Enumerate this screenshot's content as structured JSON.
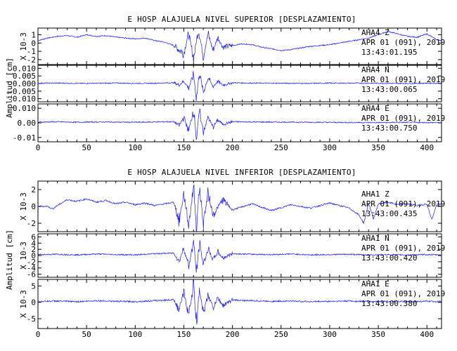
{
  "chart_data": [
    {
      "type": "line",
      "title": "E HOSP ALAJUELA NIVEL SUPERIOR [DESPLAZAMIENTO]",
      "ylabel": "Amplitud [cm]",
      "xlim": [
        0,
        415
      ],
      "x_ticks": [
        "0",
        "50",
        "100",
        "150",
        "200",
        "250",
        "300",
        "350",
        "400"
      ],
      "panels": [
        {
          "channel": "AHA4   Z",
          "date": "APR 01 (091), 2019",
          "time": "13:43:01.195",
          "scale_label": "X 10-3",
          "ylim": [
            -2.6,
            1.8
          ],
          "y_ticks": [
            "1",
            "0",
            "-1",
            "-2"
          ],
          "series": {
            "name": "AHA4 Z",
            "x": [
              0,
              10,
              20,
              30,
              40,
              50,
              60,
              70,
              80,
              90,
              100,
              110,
              120,
              130,
              140,
              145,
              150,
              155,
              160,
              165,
              170,
              175,
              180,
              185,
              190,
              200,
              210,
              220,
              230,
              240,
              250,
              260,
              270,
              280,
              290,
              300,
              310,
              320,
              330,
              340,
              350,
              360,
              370,
              380,
              390,
              400,
              410,
              415
            ],
            "values": [
              0.3,
              0.6,
              0.8,
              0.9,
              0.7,
              1.0,
              0.8,
              0.9,
              0.7,
              0.6,
              0.5,
              0.6,
              0.3,
              0.1,
              -0.3,
              -0.8,
              -1.2,
              1.2,
              -1.9,
              1.7,
              -1.6,
              1.1,
              -0.9,
              0.7,
              -0.5,
              -0.3,
              -0.1,
              -0.2,
              -0.5,
              -0.7,
              -0.9,
              -0.8,
              -0.6,
              -0.4,
              -0.3,
              -0.2,
              0.0,
              0.2,
              0.4,
              0.6,
              1.0,
              1.4,
              1.1,
              0.8,
              0.7,
              1.1,
              0.4,
              0.3
            ]
          }
        },
        {
          "channel": "AHA4   N",
          "date": "APR 01 (091), 2019",
          "time": "13:43:00.065",
          "scale_label": "",
          "ylim": [
            -0.012,
            0.012
          ],
          "y_ticks": [
            "0.010",
            "0.005",
            "0.000",
            "-0.005",
            "-0.010"
          ],
          "series": {
            "name": "AHA4 N",
            "x": [
              0,
              20,
              40,
              60,
              80,
              100,
              120,
              140,
              145,
              150,
              155,
              160,
              163,
              166,
              170,
              175,
              180,
              185,
              190,
              200,
              220,
              250,
              280,
              300,
              350,
              380,
              400,
              415
            ],
            "values": [
              0.0002,
              0.0003,
              0.0001,
              0.0002,
              0.0003,
              0.0001,
              0.0002,
              0.0005,
              -0.001,
              0.0015,
              -0.003,
              0.006,
              -0.01,
              0.008,
              -0.006,
              0.004,
              -0.002,
              0.0015,
              -0.001,
              0.0005,
              0.0003,
              0.0002,
              0.0001,
              0.0003,
              0.0002,
              0.0001,
              0.0002,
              0.0002
            ]
          }
        },
        {
          "channel": "AHA4   E",
          "date": "APR 01 (091), 2019",
          "time": "13:43:00.750",
          "scale_label": "",
          "ylim": [
            -0.013,
            0.013
          ],
          "y_ticks": [
            "0.010",
            "0.00",
            "-0.01"
          ],
          "series": {
            "name": "AHA4 E",
            "x": [
              0,
              20,
              40,
              60,
              80,
              100,
              120,
              140,
              145,
              150,
              155,
              160,
              163,
              166,
              170,
              175,
              180,
              185,
              190,
              200,
              220,
              250,
              280,
              300,
              350,
              380,
              400,
              415
            ],
            "values": [
              0.0005,
              0.0007,
              0.0004,
              0.0006,
              0.0005,
              0.0004,
              0.0006,
              0.0008,
              -0.002,
              0.004,
              -0.006,
              0.01,
              -0.011,
              0.008,
              -0.006,
              0.004,
              -0.003,
              0.002,
              -0.001,
              0.0008,
              0.0006,
              0.0005,
              0.0004,
              0.0003,
              0.0002,
              0.0003,
              0.0002,
              0.0001
            ]
          }
        }
      ]
    },
    {
      "type": "line",
      "title": "E HOSP ALAJUELA NIVEL INFERIOR [DESPLAZAMIENTO]",
      "ylabel": "Amplitud [cm]",
      "xlim": [
        0,
        415
      ],
      "x_ticks": [
        "0",
        "50",
        "100",
        "150",
        "200",
        "250",
        "300",
        "350",
        "400"
      ],
      "panels": [
        {
          "channel": "AHA1   Z",
          "date": "APR 01 (091), 2019",
          "time": "13:43:00.435",
          "scale_label": "X 10-3",
          "ylim": [
            -3.0,
            3.0
          ],
          "y_ticks": [
            "2",
            "0",
            "-2"
          ],
          "series": {
            "name": "AHA1 Z",
            "x": [
              0,
              10,
              15,
              20,
              30,
              40,
              50,
              60,
              70,
              80,
              90,
              100,
              110,
              120,
              130,
              140,
              145,
              150,
              155,
              160,
              163,
              166,
              170,
              175,
              180,
              190,
              200,
              220,
              240,
              260,
              280,
              300,
              320,
              330,
              335,
              340,
              345,
              350,
              360,
              370,
              380,
              390,
              400,
              405,
              410,
              415
            ],
            "values": [
              0,
              0,
              -0.3,
              0.1,
              0.8,
              0.6,
              0.9,
              0.5,
              0.7,
              0.3,
              0.5,
              0.2,
              0.4,
              0.1,
              0.3,
              0.5,
              -1.8,
              1.5,
              -2.3,
              2.5,
              -2.6,
              2.4,
              -1.9,
              1.6,
              -1.0,
              0.8,
              -0.4,
              0.3,
              -0.5,
              0.2,
              -0.2,
              0.4,
              -0.2,
              -1.0,
              -2.0,
              0.4,
              -1.5,
              0.3,
              0.5,
              0.2,
              0.3,
              0.1,
              0.3,
              -1.6,
              0.2,
              0.3
            ]
          }
        },
        {
          "channel": "AHA1   N",
          "date": "APR 01 (091), 2019",
          "time": "13:43:00.420",
          "scale_label": "X 10-3",
          "ylim": [
            -7.0,
            7.0
          ],
          "y_ticks": [
            "6",
            "4",
            "2",
            "0",
            "-2",
            "-4",
            "-6"
          ],
          "series": {
            "name": "AHA1 N",
            "x": [
              0,
              20,
              40,
              60,
              80,
              100,
              120,
              140,
              145,
              150,
              155,
              160,
              163,
              166,
              170,
              175,
              180,
              185,
              190,
              200,
              220,
              240,
              260,
              280,
              300,
              320,
              340,
              360,
              380,
              400,
              415
            ],
            "values": [
              0.3,
              0.4,
              0.2,
              0.5,
              0.3,
              0.2,
              0.6,
              0.8,
              -2.0,
              2.5,
              -3.5,
              4.5,
              -5.5,
              4.0,
              -3.0,
              2.2,
              -1.5,
              1.2,
              -0.8,
              0.6,
              0.4,
              0.3,
              0.5,
              0.2,
              0.3,
              0.4,
              0.2,
              0.3,
              0.2,
              0.3,
              0.2
            ]
          }
        },
        {
          "channel": "AHA1   E",
          "date": "APR 01 (091), 2019",
          "time": "13:43:00.380",
          "scale_label": "X 10-3",
          "ylim": [
            -8.0,
            7.0
          ],
          "y_ticks": [
            "5",
            "0",
            "-5"
          ],
          "series": {
            "name": "AHA1 E",
            "x": [
              0,
              20,
              40,
              60,
              80,
              100,
              120,
              140,
              145,
              150,
              155,
              160,
              163,
              166,
              170,
              175,
              180,
              185,
              190,
              200,
              220,
              240,
              260,
              280,
              300,
              320,
              340,
              360,
              380,
              400,
              415
            ],
            "values": [
              0.3,
              0.4,
              0.2,
              0.5,
              0.3,
              0.2,
              0.5,
              0.8,
              -2.5,
              3.0,
              -4.0,
              5.5,
              -7.0,
              5.0,
              -3.5,
              2.5,
              -1.8,
              1.4,
              -1.0,
              0.7,
              0.5,
              0.3,
              0.4,
              0.2,
              0.3,
              0.4,
              0.2,
              0.3,
              0.2,
              0.3,
              0.2
            ]
          }
        }
      ]
    }
  ],
  "colors": {
    "trace": "#1a1aff",
    "axis": "#000000"
  }
}
